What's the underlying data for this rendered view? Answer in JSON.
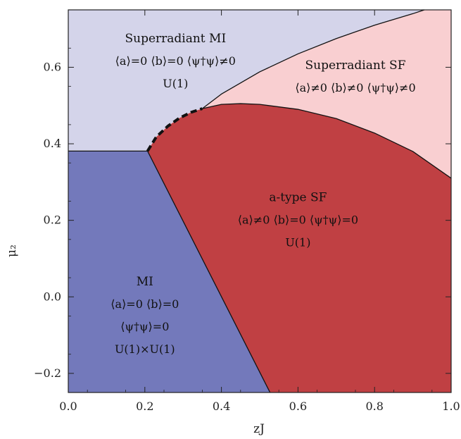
{
  "chart_data": {
    "type": "phase-diagram",
    "xlabel": "zJ",
    "ylabel": "μ₂",
    "xlim": [
      0.0,
      1.0
    ],
    "ylim": [
      -0.25,
      0.75
    ],
    "x_ticks": [
      "0.0",
      "0.2",
      "0.4",
      "0.6",
      "0.8",
      "1.0"
    ],
    "x_tick_values": [
      0.0,
      0.2,
      0.4,
      0.6,
      0.8,
      1.0
    ],
    "y_ticks": [
      "−0.2",
      "0.0",
      "0.2",
      "0.4",
      "0.6"
    ],
    "y_tick_values": [
      -0.2,
      0.0,
      0.2,
      0.4,
      0.6
    ],
    "grid": false,
    "regions": [
      {
        "name": "Superradiant MI",
        "color": "#d4d4ea",
        "lines": [
          "Superradiant MI",
          "⟨a⟩=0  ⟨b⟩=0  ⟨ψ†ψ⟩≠0",
          "U(1)"
        ],
        "anchor": [
          0.28,
          0.665
        ]
      },
      {
        "name": "Superradiant SF",
        "color": "#f9cfd1",
        "lines": [
          "Superradiant SF",
          "⟨a⟩≠0  ⟨b⟩≠0  ⟨ψ†ψ⟩≠0"
        ],
        "anchor": [
          0.75,
          0.595
        ]
      },
      {
        "name": "a-type SF",
        "color": "#c04043",
        "lines": [
          "a-type SF",
          "⟨a⟩≠0  ⟨b⟩=0  ⟨ψ†ψ⟩=0",
          "U(1)"
        ],
        "anchor": [
          0.6,
          0.25
        ]
      },
      {
        "name": "MI",
        "color": "#7379bb",
        "lines": [
          "MI",
          "⟨a⟩=0  ⟨b⟩=0",
          "⟨ψ†ψ⟩=0",
          "U(1)×U(1)"
        ],
        "anchor": [
          0.2,
          0.03
        ]
      }
    ],
    "boundaries": [
      {
        "name": "MI / Superradiant MI",
        "style": "solid",
        "x": [
          0.0,
          0.207
        ],
        "y": [
          0.381,
          0.381
        ]
      },
      {
        "name": "MI / a-type SF",
        "style": "solid",
        "x": [
          0.207,
          0.527
        ],
        "y": [
          0.381,
          -0.25
        ]
      },
      {
        "name": "Superradiant MI / a-type SF (first order)",
        "style": "dashed",
        "x": [
          0.207,
          0.23,
          0.26,
          0.29,
          0.32,
          0.35
        ],
        "y": [
          0.381,
          0.418,
          0.446,
          0.467,
          0.482,
          0.492
        ]
      },
      {
        "name": "Superradiant MI / Superradiant SF",
        "style": "solid",
        "x": [
          0.35,
          0.4,
          0.5,
          0.6,
          0.7,
          0.8,
          0.9,
          0.93
        ],
        "y": [
          0.492,
          0.53,
          0.588,
          0.635,
          0.675,
          0.71,
          0.74,
          0.75
        ]
      },
      {
        "name": "Superradiant SF / a-type SF",
        "style": "solid",
        "x": [
          0.35,
          0.4,
          0.45,
          0.5,
          0.6,
          0.7,
          0.8,
          0.9,
          1.0
        ],
        "y": [
          0.492,
          0.503,
          0.505,
          0.503,
          0.49,
          0.466,
          0.428,
          0.38,
          0.31
        ]
      }
    ]
  }
}
